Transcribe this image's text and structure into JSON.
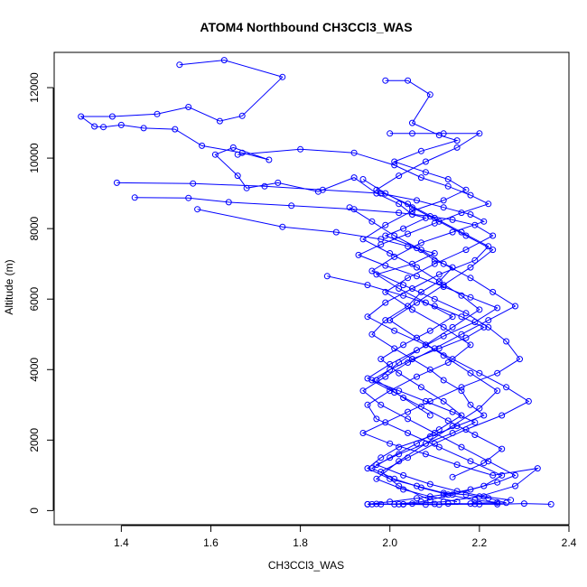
{
  "chart_data": {
    "type": "scatter",
    "title": "ATOM4 Northbound CH3CCl3_WAS",
    "xlabel": "CH3CCl3_WAS",
    "ylabel": "Altitude (m)",
    "xlim": [
      1.25,
      2.4
    ],
    "ylim": [
      -400,
      13000
    ],
    "xticks": [
      1.4,
      1.6,
      1.8,
      2.0,
      2.2,
      2.4
    ],
    "xtick_labels": [
      "1.4",
      "1.6",
      "1.8",
      "2.0",
      "2.2",
      "2.4"
    ],
    "yticks": [
      0,
      2000,
      4000,
      6000,
      8000,
      10000,
      12000
    ],
    "ytick_labels": [
      "0",
      "2000",
      "4000",
      "6000",
      "8000",
      "10000",
      "12000"
    ],
    "grid": false,
    "marker": "open-circle",
    "connected": true,
    "color": "#0000ff",
    "series": [
      {
        "x": [
          1.53,
          1.63,
          1.76,
          1.67,
          1.62,
          1.55,
          1.48,
          1.38,
          1.31,
          1.34,
          1.36,
          1.4,
          1.45,
          1.52,
          1.58,
          1.67,
          1.73,
          1.65,
          1.61,
          1.66,
          1.68,
          1.75,
          1.84,
          1.92,
          1.97,
          2.02,
          2.05,
          2.08,
          2.03,
          1.99,
          2.06,
          2.1,
          2.14,
          2.11,
          2.07,
          2.04,
          1.99,
          1.96,
          2.01,
          2.05,
          2.09,
          2.12,
          2.16,
          2.18,
          2.21,
          2.15,
          2.09,
          2.02,
          1.98,
          1.95,
          2.0,
          2.06,
          2.12,
          2.17,
          2.22,
          2.26,
          2.2,
          2.13,
          2.08,
          2.02,
          1.97,
          1.95,
          2.03,
          2.11,
          2.19,
          2.24,
          2.3,
          2.36
        ],
        "y": [
          12650,
          12780,
          12300,
          11200,
          11050,
          11450,
          11250,
          11180,
          11180,
          10900,
          10880,
          10940,
          10850,
          10820,
          10350,
          10150,
          9950,
          10300,
          10100,
          9500,
          9150,
          9300,
          9050,
          9450,
          9000,
          8700,
          8400,
          8300,
          8000,
          7800,
          7450,
          7100,
          6900,
          6500,
          6200,
          5800,
          5400,
          5000,
          4600,
          4300,
          4000,
          3700,
          3400,
          3000,
          2700,
          2400,
          2100,
          1800,
          1500,
          1200,
          900,
          700,
          500,
          450,
          350,
          220,
          180,
          200,
          170,
          180,
          190,
          180,
          180,
          170,
          190,
          180,
          200,
          180
        ]
      },
      {
        "x": [
          1.39,
          1.56,
          1.72,
          1.85,
          1.98,
          2.06,
          2.12,
          2.18,
          2.21,
          2.14,
          2.07,
          2.01,
          1.96,
          2.03,
          2.1,
          2.17,
          2.22,
          2.26,
          2.29,
          2.24,
          2.16,
          2.09,
          2.04,
          1.99,
          1.94,
          2.0,
          2.08,
          2.15,
          2.23,
          2.33,
          2.28,
          2.2,
          2.12,
          2.05,
          1.98,
          1.96
        ],
        "y": [
          9300,
          9280,
          9200,
          9100,
          9000,
          8800,
          8600,
          8400,
          8200,
          7900,
          7600,
          7200,
          6800,
          6400,
          6000,
          5600,
          5200,
          4800,
          4300,
          3900,
          3500,
          3100,
          2800,
          2500,
          2200,
          1900,
          1600,
          1300,
          1000,
          1200,
          700,
          400,
          250,
          200,
          180,
          180
        ]
      },
      {
        "x": [
          1.43,
          1.55,
          1.64,
          1.78,
          1.92,
          2.02,
          2.09,
          2.14,
          2.19,
          2.23,
          2.17,
          2.1,
          2.04,
          1.99,
          2.05,
          2.12,
          2.18,
          2.13,
          2.06,
          2.0,
          1.95,
          1.97,
          2.04,
          2.11,
          2.18,
          2.25,
          2.21,
          2.14,
          2.07,
          2.01
        ],
        "y": [
          8880,
          8870,
          8750,
          8650,
          8550,
          8450,
          8350,
          8250,
          8100,
          7800,
          7400,
          7000,
          6600,
          6200,
          5700,
          5200,
          4700,
          4200,
          3800,
          3400,
          3000,
          2600,
          2200,
          1800,
          1400,
          1000,
          700,
          450,
          250,
          180
        ]
      },
      {
        "x": [
          1.57,
          1.76,
          1.88,
          1.98,
          2.04,
          2.1,
          2.05,
          1.97,
          2.02,
          2.08,
          2.14,
          2.09,
          2.03,
          1.98,
          2.02,
          2.07,
          2.12,
          2.16,
          2.11,
          2.06,
          2.0,
          1.96,
          2.01,
          2.07,
          2.13,
          2.19,
          2.24,
          2.18,
          2.1,
          2.03
        ],
        "y": [
          8550,
          8050,
          7900,
          7700,
          7500,
          7300,
          7000,
          6700,
          6300,
          5900,
          5500,
          5100,
          4700,
          4300,
          3900,
          3500,
          3100,
          2700,
          2300,
          1900,
          1500,
          1200,
          900,
          650,
          450,
          300,
          230,
          200,
          190,
          180
        ]
      },
      {
        "x": [
          1.99,
          2.04,
          2.09,
          2.05,
          2.11,
          2.15,
          2.07,
          2.01,
          2.08,
          2.13,
          2.17,
          2.12,
          2.05,
          1.99,
          1.94,
          2.0,
          2.06,
          2.11,
          2.16,
          2.2,
          2.14,
          2.08,
          2.02,
          1.97,
          2.03,
          2.09
        ],
        "y": [
          12200,
          12200,
          11800,
          11000,
          10650,
          10500,
          10200,
          9900,
          9600,
          9400,
          9100,
          8800,
          8500,
          8100,
          7700,
          7300,
          6900,
          6500,
          6100,
          5700,
          5200,
          4700,
          4200,
          3700,
          3200,
          2700
        ]
      },
      {
        "x": [
          2.0,
          2.05,
          2.12,
          2.2,
          2.15,
          2.08,
          2.02,
          1.97,
          2.04,
          2.1,
          2.16,
          2.22,
          2.19,
          2.11,
          2.05,
          1.99,
          1.95,
          2.01,
          2.08,
          2.14,
          2.2,
          2.26,
          2.31,
          2.25,
          2.17,
          2.1,
          2.04,
          1.98,
          2.02,
          2.09
        ],
        "y": [
          10700,
          10700,
          10700,
          10700,
          10300,
          9900,
          9500,
          9100,
          8700,
          8300,
          7900,
          7500,
          7100,
          6700,
          6300,
          5900,
          5500,
          5100,
          4700,
          4300,
          3900,
          3500,
          3100,
          2700,
          2300,
          1900,
          1500,
          1100,
          700,
          300
        ]
      },
      {
        "x": [
          1.66,
          1.8,
          1.92,
          2.01,
          2.07,
          2.13,
          2.18,
          2.22,
          2.16,
          2.1,
          2.04,
          1.98,
          1.93,
          1.99,
          2.06,
          2.12,
          2.18,
          2.24,
          2.19,
          2.12,
          2.06,
          2.0,
          1.95,
          2.01,
          2.07,
          2.13,
          2.19,
          2.25,
          2.21,
          2.14
        ],
        "y": [
          10100,
          10250,
          10150,
          9800,
          9450,
          9200,
          8950,
          8700,
          8450,
          8150,
          7850,
          7550,
          7250,
          6950,
          6650,
          6350,
          6050,
          5750,
          5350,
          4950,
          4550,
          4150,
          3750,
          3350,
          2950,
          2550,
          2150,
          1750,
          1350,
          950
        ]
      },
      {
        "x": [
          1.86,
          1.95,
          2.03,
          2.1,
          2.16,
          2.21,
          2.17,
          2.11,
          2.05,
          2.0,
          1.96,
          2.02,
          2.08,
          2.14,
          2.19,
          2.14,
          2.08,
          2.02,
          1.97,
          2.03,
          2.09,
          2.15,
          2.21,
          2.27
        ],
        "y": [
          6650,
          6400,
          6100,
          5800,
          5500,
          5200,
          4900,
          4600,
          4300,
          4000,
          3700,
          3400,
          3100,
          2800,
          2500,
          2200,
          1900,
          1600,
          1300,
          1000,
          750,
          550,
          400,
          300
        ]
      },
      {
        "x": [
          1.91,
          1.96,
          2.01,
          2.07,
          2.12,
          2.18,
          2.23,
          2.28,
          2.22,
          2.16,
          2.1,
          2.04,
          1.99,
          1.94,
          1.98,
          2.04,
          2.1,
          2.16,
          2.22,
          2.28,
          2.24,
          2.18,
          2.12,
          2.06,
          2.0,
          1.95
        ],
        "y": [
          8600,
          8200,
          7800,
          7400,
          7000,
          6600,
          6200,
          5800,
          5400,
          5000,
          4600,
          4200,
          3800,
          3400,
          3000,
          2600,
          2200,
          1800,
          1400,
          1000,
          800,
          600,
          450,
          350,
          250,
          180
        ]
      },
      {
        "x": [
          1.94,
          1.99,
          2.05,
          2.11,
          2.17,
          2.23,
          2.18,
          2.12,
          2.06,
          2.0,
          2.06,
          2.12,
          2.18,
          2.24,
          2.2,
          2.14,
          2.08,
          2.02,
          1.97,
          2.03,
          2.09,
          2.15
        ],
        "y": [
          9400,
          9000,
          8600,
          8200,
          7800,
          7400,
          6900,
          6400,
          5900,
          5400,
          4900,
          4400,
          3900,
          3400,
          2900,
          2400,
          1900,
          1400,
          900,
          600,
          400,
          250
        ]
      }
    ]
  }
}
